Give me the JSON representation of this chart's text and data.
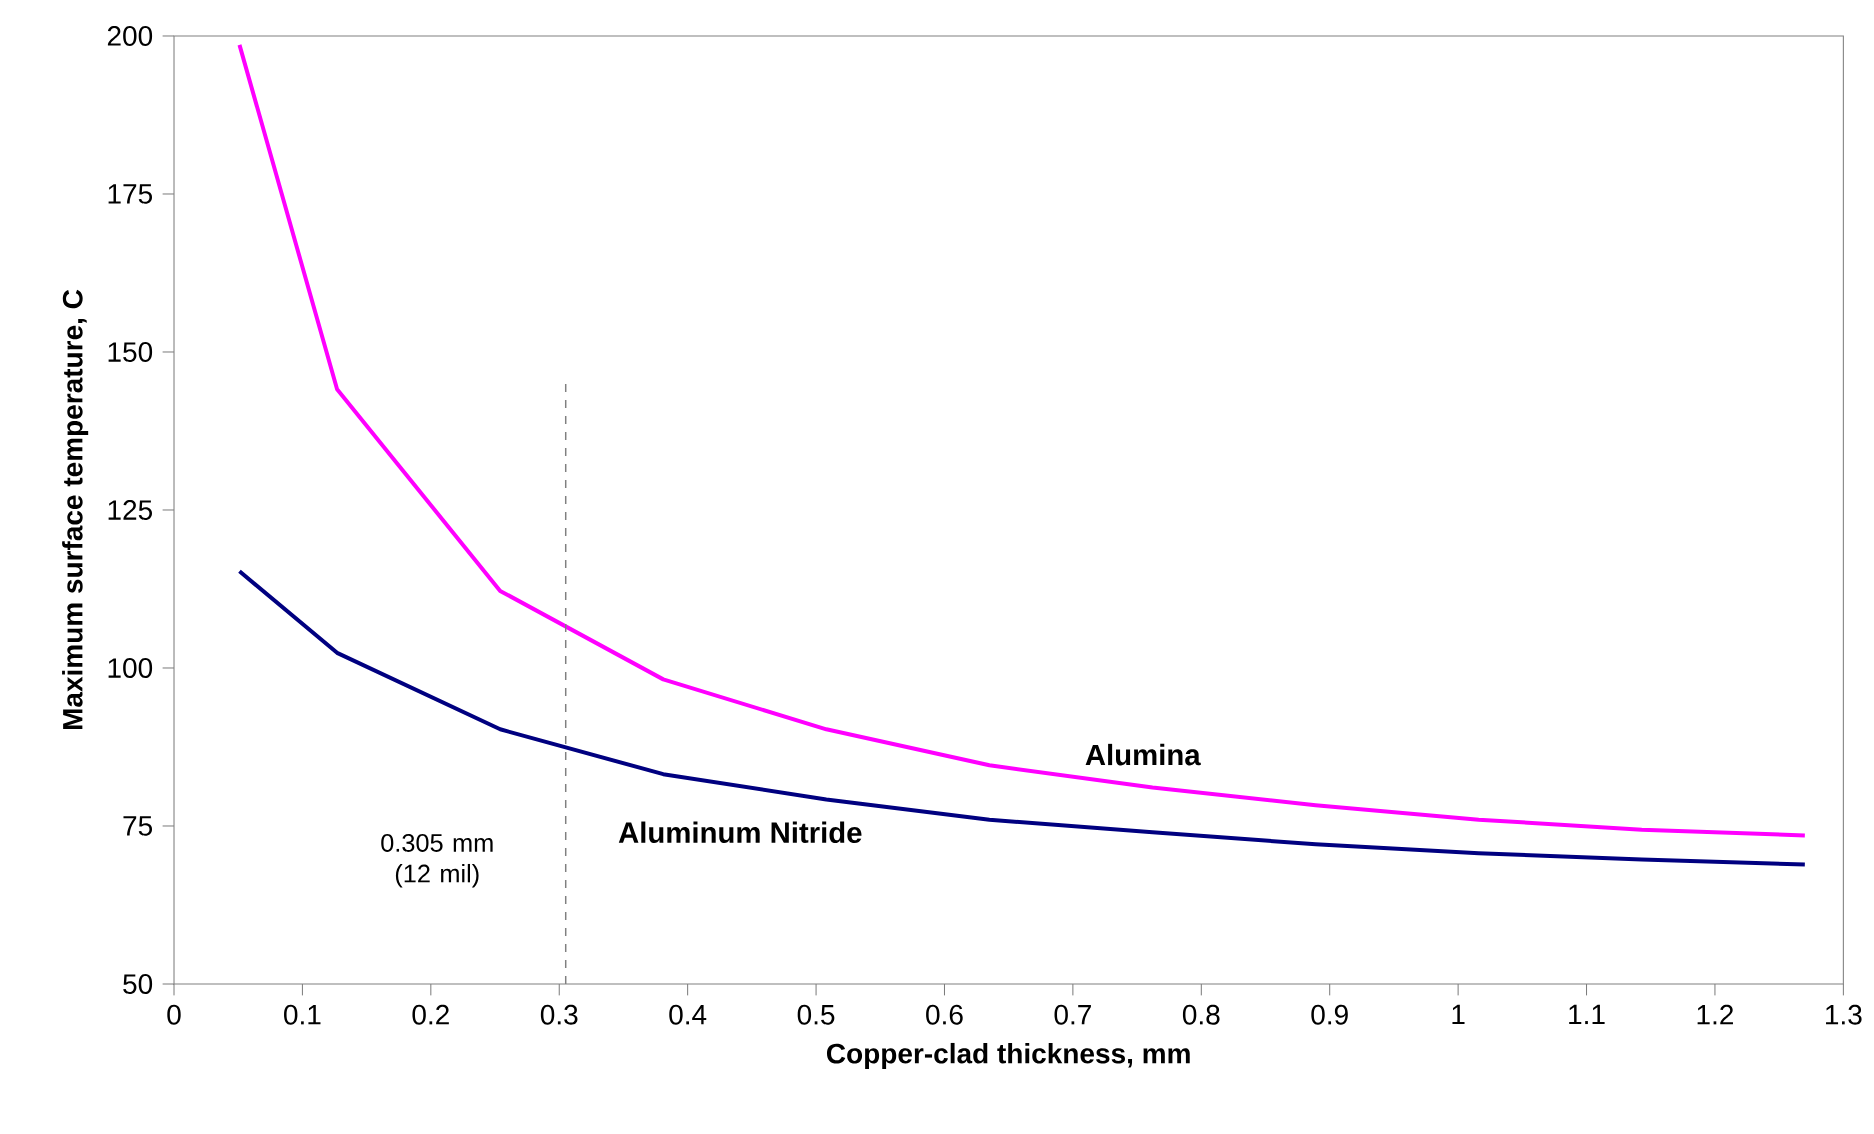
{
  "chart_data": {
    "type": "line",
    "xlabel": "Copper-clad thickness, mm",
    "ylabel": "Maximum surface temperature, C",
    "xlim": [
      0,
      1.3
    ],
    "xticks": [
      0,
      0.1,
      0.2,
      0.3,
      0.4,
      0.5,
      0.6,
      0.7,
      0.8,
      0.9,
      1,
      1.1,
      1.2,
      1.3
    ],
    "ylim": [
      50,
      200
    ],
    "yticks": [
      50,
      75,
      100,
      125,
      150,
      175,
      200
    ],
    "grid": false,
    "legend": false,
    "marker": "none",
    "line_style": "solid",
    "series": [
      {
        "name": "Alumina",
        "color": "#ff00ff",
        "x": [
          0.051,
          0.127,
          0.254,
          0.381,
          0.508,
          0.635,
          0.762,
          0.889,
          1.016,
          1.143,
          1.27
        ],
        "values": [
          198.6,
          144.1,
          112.2,
          98.2,
          90.3,
          84.6,
          81.1,
          78.3,
          76.0,
          74.4,
          73.5
        ]
      },
      {
        "name": "Aluminum Nitride",
        "color": "#000080",
        "x": [
          0.051,
          0.127,
          0.254,
          0.381,
          0.508,
          0.635,
          0.762,
          0.889,
          1.016,
          1.143,
          1.27
        ],
        "values": [
          115.3,
          102.4,
          90.3,
          83.2,
          79.2,
          76.0,
          74.0,
          72.1,
          70.7,
          69.7,
          68.9
        ]
      }
    ],
    "ref_lines": [
      {
        "axis": "x",
        "value": 0.305,
        "label": "0.305 mm (12 mil)",
        "color": "#808080",
        "line_style": "dashed"
      }
    ]
  }
}
